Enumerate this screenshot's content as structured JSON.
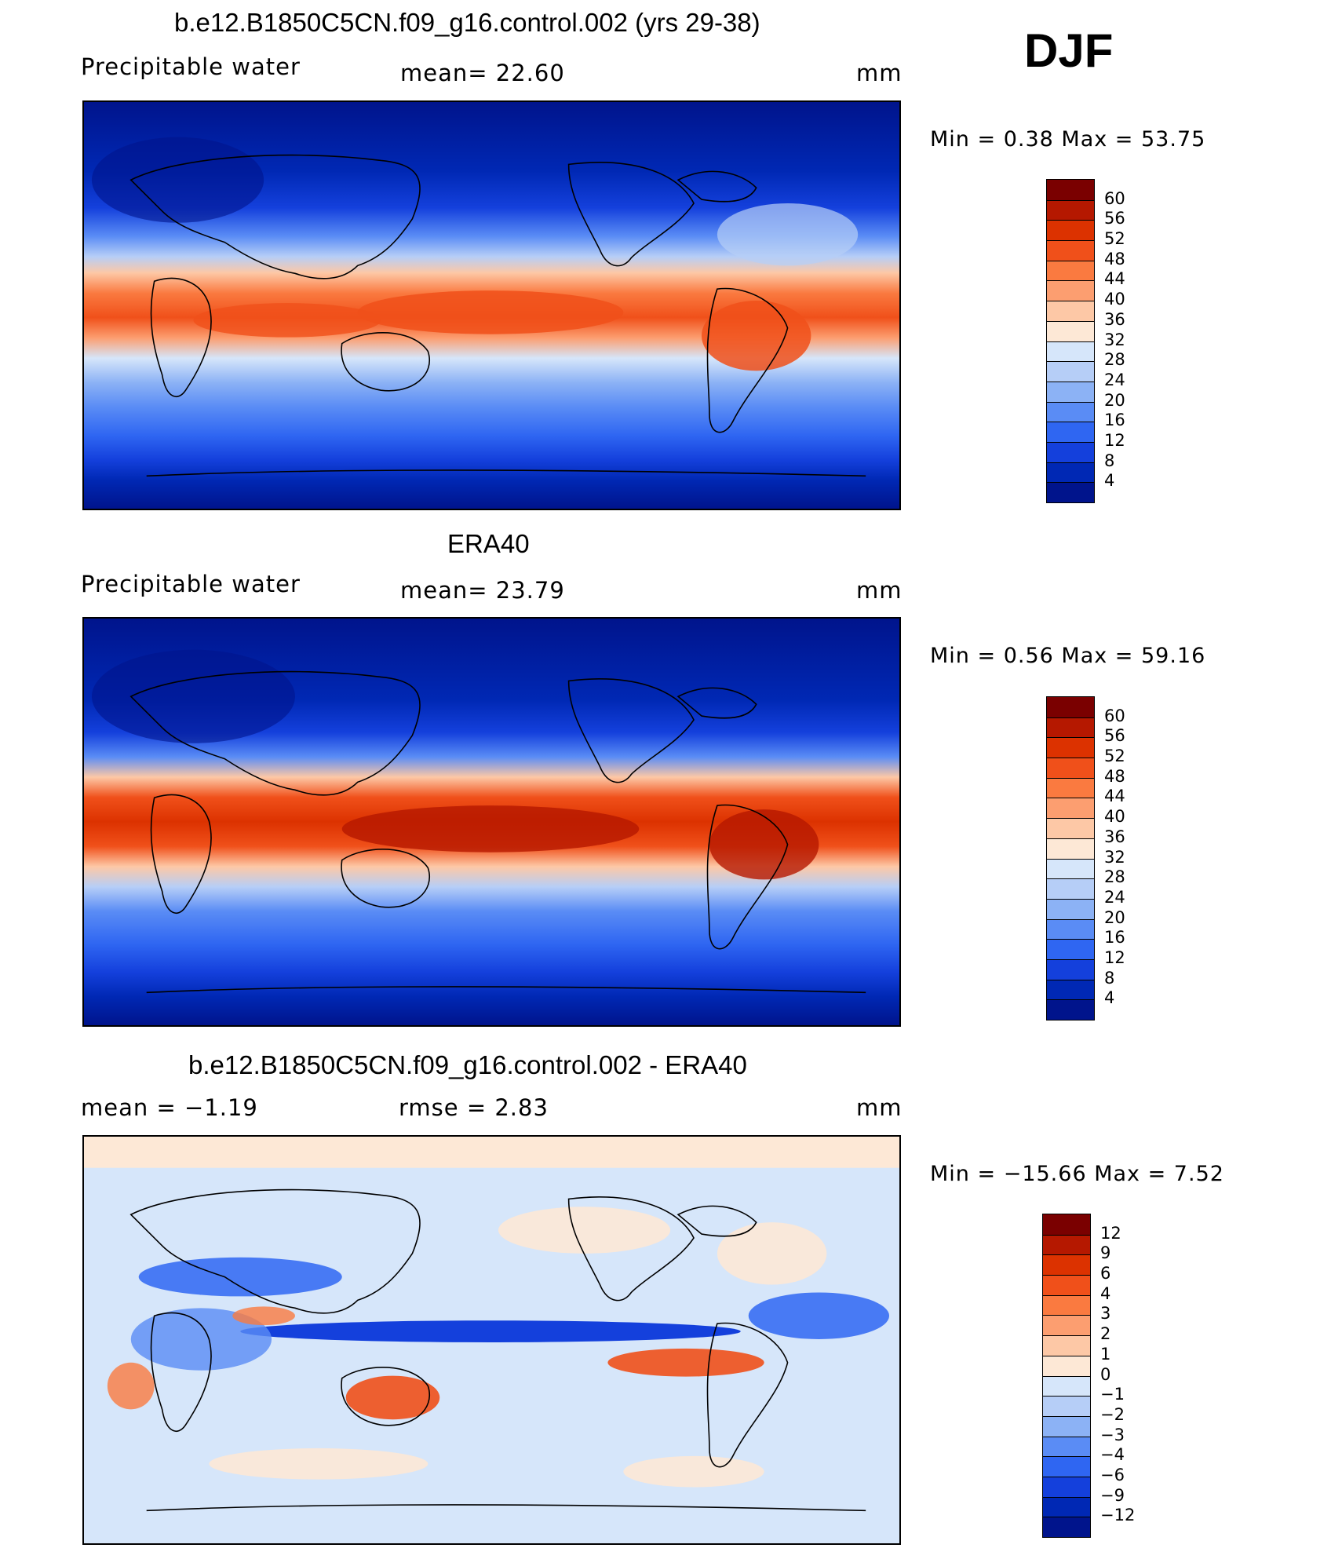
{
  "season": "DJF",
  "panels": [
    {
      "title": "b.e12.B1850C5CN.f09_g16.control.002 (yrs 29-38)",
      "left_label": "Precipitable  water",
      "center_label": "mean=   22.60",
      "units": "mm",
      "min_max": "Min  =     0.38  Max  =    53.75",
      "colorbar_ticks": [
        "60",
        "56",
        "52",
        "48",
        "44",
        "40",
        "36",
        "32",
        "28",
        "24",
        "20",
        "16",
        "12",
        "8",
        "4"
      ],
      "colors": [
        "#7a0000",
        "#b51800",
        "#dc3200",
        "#f0501a",
        "#fa7a40",
        "#fc9e70",
        "#fdc8a6",
        "#fde8d6",
        "#d6e6fa",
        "#b6cef7",
        "#8cb2f5",
        "#5a8cf5",
        "#2f66f2",
        "#1440dc",
        "#0028b4",
        "#00148c"
      ]
    },
    {
      "title": "ERA40",
      "left_label": "Precipitable  water",
      "center_label": "mean=   23.79",
      "units": "mm",
      "min_max": "Min  =     0.56  Max  =    59.16",
      "colorbar_ticks": [
        "60",
        "56",
        "52",
        "48",
        "44",
        "40",
        "36",
        "32",
        "28",
        "24",
        "20",
        "16",
        "12",
        "8",
        "4"
      ],
      "colors": [
        "#7a0000",
        "#b51800",
        "#dc3200",
        "#f0501a",
        "#fa7a40",
        "#fc9e70",
        "#fdc8a6",
        "#fde8d6",
        "#d6e6fa",
        "#b6cef7",
        "#8cb2f5",
        "#5a8cf5",
        "#2f66f2",
        "#1440dc",
        "#0028b4",
        "#00148c"
      ]
    },
    {
      "title": "b.e12.B1850C5CN.f09_g16.control.002 - ERA40",
      "left_label": "mean  =    −1.19",
      "center_label": "rmse  =     2.83",
      "units": "mm",
      "min_max": "Min  =  −15.66  Max  =      7.52",
      "colorbar_ticks": [
        "12",
        "9",
        "6",
        "4",
        "3",
        "2",
        "1",
        "0",
        "−1",
        "−2",
        "−3",
        "−4",
        "−6",
        "−9",
        "−12"
      ],
      "colors": [
        "#7a0000",
        "#b51800",
        "#dc3200",
        "#f0501a",
        "#fa7a40",
        "#fc9e70",
        "#fdc8a6",
        "#fde8d6",
        "#d6e6fa",
        "#b6cef7",
        "#8cb2f5",
        "#5a8cf5",
        "#2f66f2",
        "#1440dc",
        "#0028b4",
        "#00148c"
      ]
    }
  ]
}
